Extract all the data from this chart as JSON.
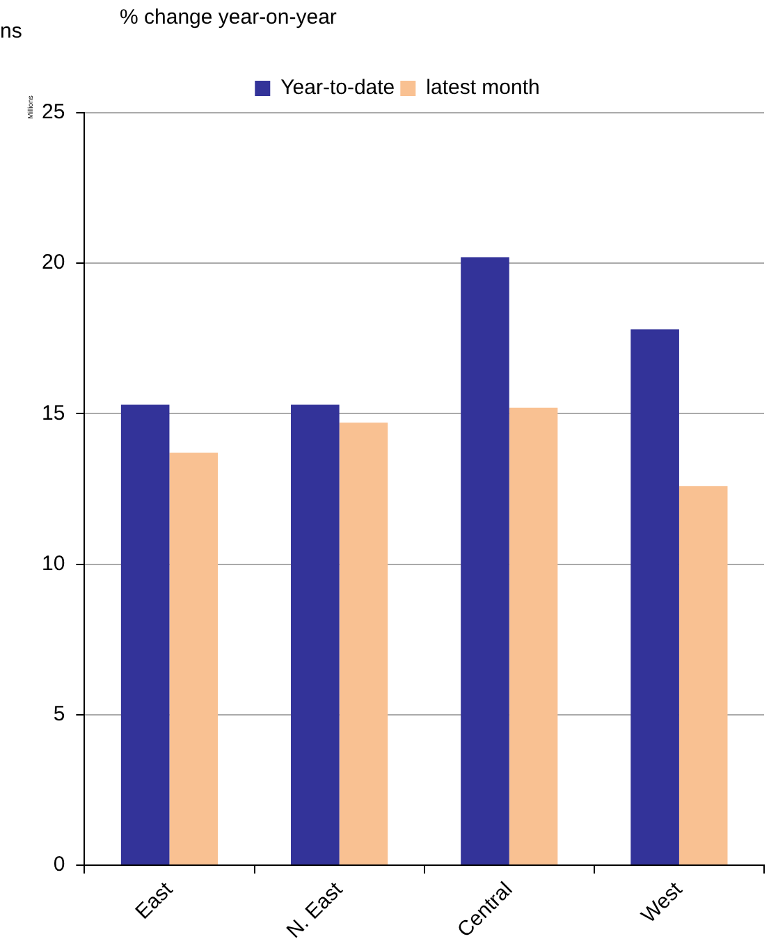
{
  "chart_data": {
    "type": "bar",
    "title": "% change year-on-year",
    "ylabel": "Millions",
    "annotations": [
      "ns"
    ],
    "categories": [
      "East",
      "N. East",
      "Central",
      "West"
    ],
    "series": [
      {
        "name": "Year-to-date",
        "color": "#333399",
        "values": [
          15.3,
          15.3,
          20.2,
          17.8
        ]
      },
      {
        "name": "latest month",
        "color": "#f9c192",
        "values": [
          13.7,
          14.7,
          15.2,
          12.6
        ]
      }
    ],
    "ylim": [
      0,
      25
    ],
    "yticks": [
      0,
      5,
      10,
      15,
      20,
      25
    ],
    "grid": "y",
    "legend": "top"
  }
}
